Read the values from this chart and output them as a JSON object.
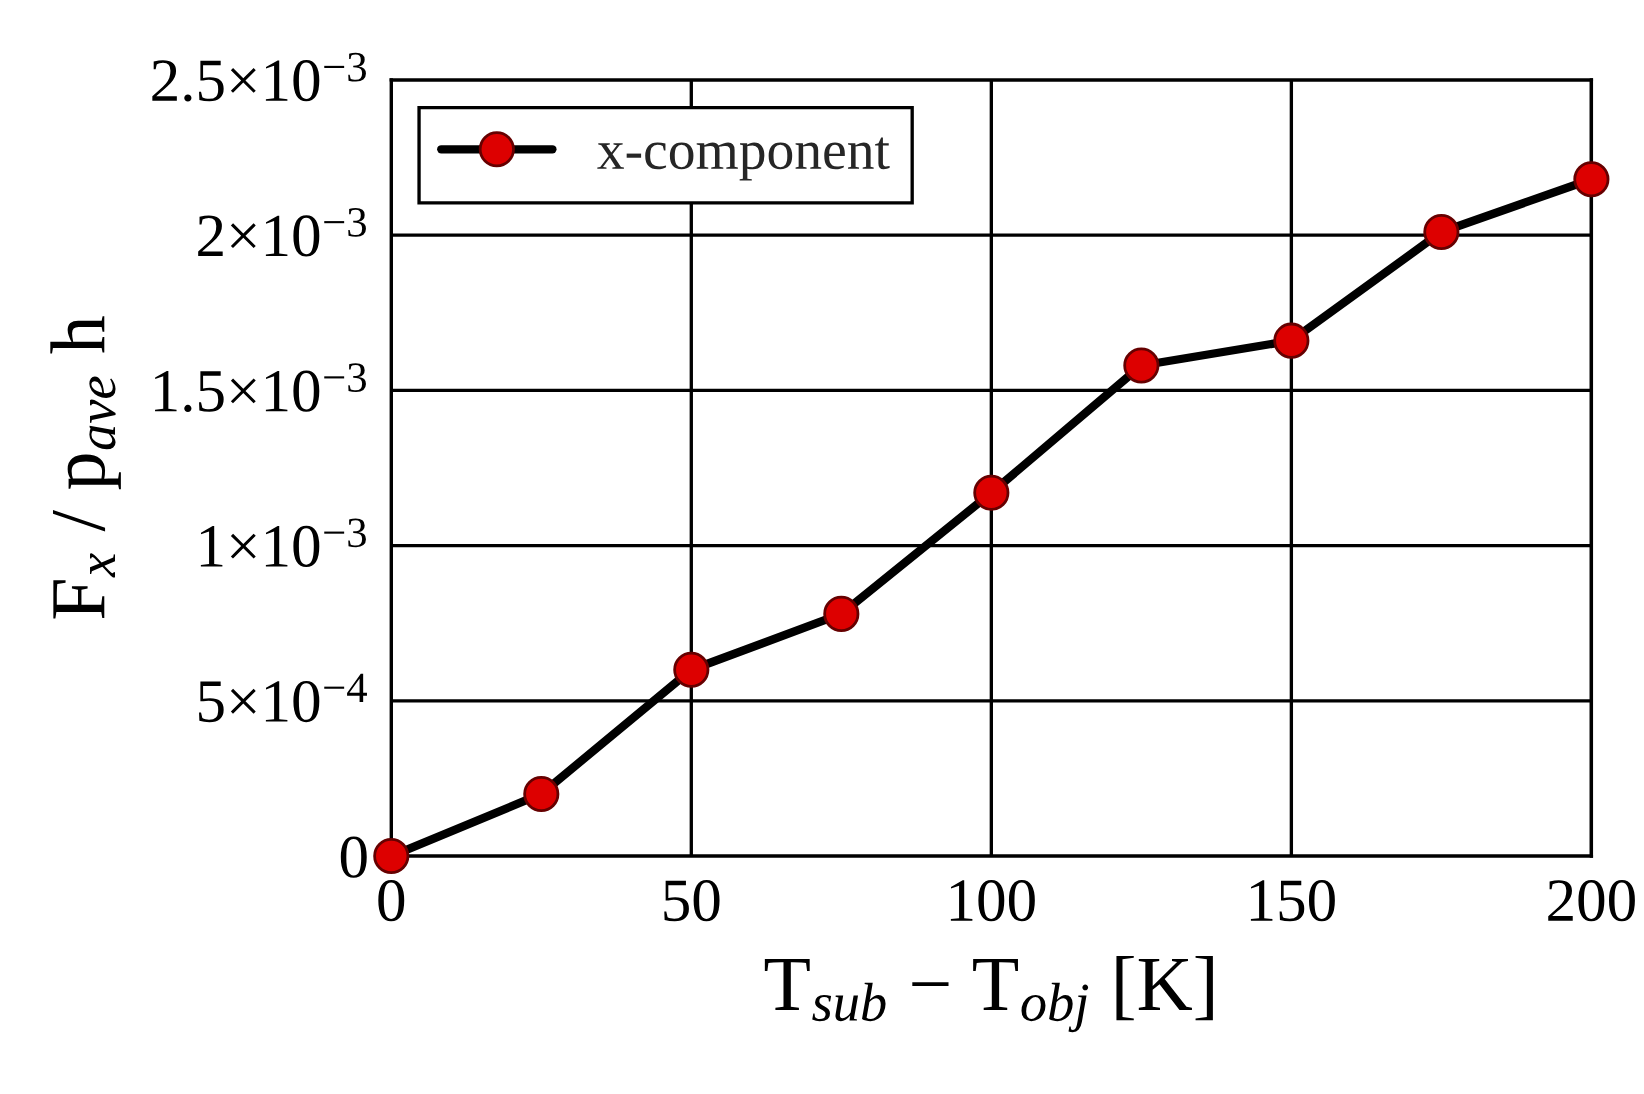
{
  "chart_data": {
    "type": "line",
    "xlabel": "T$_{sub}$ − T$_{obj}$ [K]",
    "ylabel": "F$_{x}$ / p$_{ave}$ h",
    "x": [
      0,
      25,
      50,
      75,
      100,
      125,
      150,
      175,
      200
    ],
    "series": [
      {
        "name": "x-component",
        "color": "#dd0000",
        "values": [
          0,
          0.0002,
          0.0006,
          0.00078,
          0.00117,
          0.00158,
          0.00166,
          0.00201,
          0.00218
        ]
      }
    ],
    "xlim": [
      0,
      200
    ],
    "xticks": [
      0,
      50,
      100,
      150,
      200
    ],
    "ylim": [
      0,
      0.0025
    ],
    "yticks": [
      {
        "value": 0,
        "label": "0"
      },
      {
        "value": 0.0005,
        "label": "5×10$^{−4}$"
      },
      {
        "value": 0.001,
        "label": "1×10$^{−3}$"
      },
      {
        "value": 0.0015,
        "label": "1.5×10$^{−3}$"
      },
      {
        "value": 0.002,
        "label": "2×10$^{−3}$"
      },
      {
        "value": 0.0025,
        "label": "2.5×10$^{−3}$"
      }
    ],
    "grid": true,
    "legend": "top left",
    "marker": "circle",
    "line_style": "solid"
  }
}
